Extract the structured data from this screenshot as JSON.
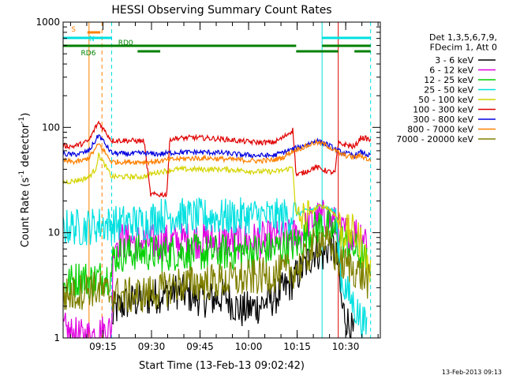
{
  "chart_data": {
    "type": "line",
    "title": "HESSI Observing Summary Count Rates",
    "xlabel": "Start Time (13-Feb-13 09:02:42)",
    "ylabel": "Count Rate (s⁻¹ detector⁻¹)",
    "ylabel_main": "Count Rate (s",
    "ylabel_sup1": "-1",
    "ylabel_mid": " detector",
    "ylabel_sup2": "-1",
    "ylabel_end": ")",
    "yscale": "log",
    "ylim": [
      1,
      1000
    ],
    "xlim_minutes": [
      0,
      98
    ],
    "xticks": [
      {
        "minute": 12.3,
        "label": "09:15"
      },
      {
        "minute": 27.3,
        "label": "09:30"
      },
      {
        "minute": 42.3,
        "label": "09:45"
      },
      {
        "minute": 57.3,
        "label": "10:00"
      },
      {
        "minute": 72.3,
        "label": "10:15"
      },
      {
        "minute": 87.3,
        "label": "10:30"
      }
    ],
    "yticks": [
      {
        "value": 1,
        "label": "1"
      },
      {
        "value": 10,
        "label": "10"
      },
      {
        "value": 100,
        "label": "100"
      },
      {
        "value": 1000,
        "label": "1000"
      }
    ],
    "legend": {
      "position": "right",
      "header": [
        "Det 1,3,5,6,7,9,",
        "FDecim 1, Att 0"
      ]
    },
    "series": [
      {
        "name": "3 - 6 keV",
        "color": "#000000",
        "points": [
          [
            15,
            1
          ],
          [
            15.5,
            1.8
          ],
          [
            20,
            2.2
          ],
          [
            25,
            2.3
          ],
          [
            30,
            2.6
          ],
          [
            35,
            2.8
          ],
          [
            40,
            2.5
          ],
          [
            45,
            2.3
          ],
          [
            50,
            2.5
          ],
          [
            55,
            1.8
          ],
          [
            60,
            2.0
          ],
          [
            65,
            2.4
          ],
          [
            70,
            3.2
          ],
          [
            75,
            5.0
          ],
          [
            78,
            7.0
          ],
          [
            80,
            6.0
          ],
          [
            83,
            8.0
          ],
          [
            85,
            5.0
          ],
          [
            86,
            2.0
          ],
          [
            90,
            1.0
          ]
        ]
      },
      {
        "name": "6 - 12 keV",
        "color": "#e000e0",
        "points": [
          [
            0,
            1.2
          ],
          [
            2,
            1.1
          ],
          [
            6,
            1.0
          ],
          [
            15,
            1.2
          ],
          [
            15.5,
            8.5
          ],
          [
            20,
            8.3
          ],
          [
            25,
            8.2
          ],
          [
            30,
            8.0
          ],
          [
            35,
            8.3
          ],
          [
            40,
            8.5
          ],
          [
            45,
            8.4
          ],
          [
            50,
            8.2
          ],
          [
            55,
            8.3
          ],
          [
            60,
            8.5
          ],
          [
            65,
            8.7
          ],
          [
            70,
            9.0
          ],
          [
            73,
            9.5
          ],
          [
            75,
            11
          ],
          [
            77,
            13
          ],
          [
            80,
            14
          ],
          [
            82,
            13
          ],
          [
            84,
            12
          ],
          [
            85,
            10
          ],
          [
            90,
            10
          ],
          [
            92,
            10
          ],
          [
            94,
            9
          ]
        ]
      },
      {
        "name": "12 - 25 keV",
        "color": "#00d000",
        "points": [
          [
            0,
            3.0
          ],
          [
            3,
            3.5
          ],
          [
            6,
            3.8
          ],
          [
            8,
            3.5
          ],
          [
            15,
            4.0
          ],
          [
            15.5,
            6.0
          ],
          [
            20,
            6.5
          ],
          [
            25,
            6.5
          ],
          [
            30,
            6.3
          ],
          [
            35,
            6.5
          ],
          [
            40,
            6.5
          ],
          [
            45,
            6.4
          ],
          [
            50,
            6.5
          ],
          [
            55,
            6.6
          ],
          [
            60,
            6.7
          ],
          [
            65,
            7.0
          ],
          [
            70,
            7.5
          ],
          [
            73,
            8.0
          ],
          [
            75,
            9.5
          ],
          [
            78,
            11
          ],
          [
            80,
            12
          ],
          [
            82,
            11
          ],
          [
            84,
            10
          ],
          [
            85,
            9
          ],
          [
            90,
            7
          ],
          [
            92,
            6
          ],
          [
            94,
            5
          ]
        ]
      },
      {
        "name": "25 - 50 keV",
        "color": "#00e0e0",
        "points": [
          [
            0,
            11
          ],
          [
            3,
            11.5
          ],
          [
            6,
            11
          ],
          [
            8,
            11.5
          ],
          [
            12,
            12
          ],
          [
            15,
            12
          ],
          [
            20,
            12.5
          ],
          [
            25,
            12.5
          ],
          [
            30,
            14.5
          ],
          [
            35,
            14.5
          ],
          [
            40,
            14.0
          ],
          [
            45,
            14.2
          ],
          [
            50,
            14.0
          ],
          [
            55,
            14.3
          ],
          [
            60,
            14.5
          ],
          [
            65,
            14.0
          ],
          [
            70,
            14.5
          ],
          [
            72,
            15
          ],
          [
            75,
            16
          ],
          [
            78,
            17
          ],
          [
            80,
            18
          ],
          [
            82,
            17
          ],
          [
            84,
            16
          ],
          [
            86,
            3.5
          ],
          [
            90,
            2
          ],
          [
            92,
            1.5
          ],
          [
            94,
            1.2
          ]
        ]
      },
      {
        "name": "50 - 100 keV",
        "color": "#d4d400",
        "points": [
          [
            0,
            30
          ],
          [
            3,
            31
          ],
          [
            6,
            32
          ],
          [
            8,
            34
          ],
          [
            10,
            40
          ],
          [
            11,
            55
          ],
          [
            15,
            34
          ],
          [
            20,
            34
          ],
          [
            25,
            34
          ],
          [
            27,
            36
          ],
          [
            30,
            38
          ],
          [
            35,
            40
          ],
          [
            40,
            40
          ],
          [
            45,
            40
          ],
          [
            50,
            40
          ],
          [
            55,
            39
          ],
          [
            60,
            38
          ],
          [
            65,
            38
          ],
          [
            68,
            39
          ],
          [
            71,
            42
          ],
          [
            72,
            13
          ],
          [
            75,
            14
          ],
          [
            78,
            17
          ],
          [
            80,
            18
          ],
          [
            82,
            17
          ],
          [
            84,
            15
          ],
          [
            85,
            13
          ],
          [
            86,
            10
          ],
          [
            88,
            10
          ],
          [
            90,
            10
          ],
          [
            92,
            8
          ],
          [
            94,
            5
          ],
          [
            95,
            4
          ]
        ]
      },
      {
        "name": "100 - 300 keV",
        "color": "#e00000",
        "points": [
          [
            0,
            67
          ],
          [
            3,
            66
          ],
          [
            6,
            70
          ],
          [
            8,
            75
          ],
          [
            10,
            100
          ],
          [
            11,
            112
          ],
          [
            15,
            75
          ],
          [
            20,
            75
          ],
          [
            25,
            74
          ],
          [
            27,
            23
          ],
          [
            32,
            23
          ],
          [
            33,
            78
          ],
          [
            40,
            80
          ],
          [
            45,
            79
          ],
          [
            50,
            77
          ],
          [
            55,
            74
          ],
          [
            60,
            72
          ],
          [
            65,
            72
          ],
          [
            68,
            80
          ],
          [
            71,
            95
          ],
          [
            72,
            35
          ],
          [
            75,
            38
          ],
          [
            78,
            42
          ],
          [
            80,
            40
          ],
          [
            82,
            38
          ],
          [
            84,
            37
          ],
          [
            85,
            70
          ],
          [
            88,
            68
          ],
          [
            90,
            65
          ],
          [
            92,
            80
          ],
          [
            94,
            78
          ],
          [
            95,
            75
          ]
        ]
      },
      {
        "name": "300 - 800 keV",
        "color": "#0000e0",
        "points": [
          [
            0,
            56
          ],
          [
            3,
            55
          ],
          [
            6,
            57
          ],
          [
            8,
            60
          ],
          [
            10,
            75
          ],
          [
            11,
            85
          ],
          [
            15,
            57
          ],
          [
            20,
            56
          ],
          [
            25,
            57
          ],
          [
            27,
            56
          ],
          [
            30,
            56
          ],
          [
            35,
            58
          ],
          [
            40,
            58
          ],
          [
            45,
            58
          ],
          [
            50,
            57
          ],
          [
            55,
            55
          ],
          [
            60,
            54
          ],
          [
            65,
            54
          ],
          [
            68,
            58
          ],
          [
            71,
            62
          ],
          [
            75,
            68
          ],
          [
            78,
            75
          ],
          [
            80,
            72
          ],
          [
            82,
            68
          ],
          [
            84,
            62
          ],
          [
            86,
            58
          ],
          [
            90,
            54
          ],
          [
            92,
            58
          ],
          [
            94,
            55
          ],
          [
            95,
            53
          ]
        ]
      },
      {
        "name": "800 - 7000 keV",
        "color": "#ff8000",
        "points": [
          [
            0,
            48
          ],
          [
            3,
            47
          ],
          [
            6,
            48
          ],
          [
            8,
            52
          ],
          [
            10,
            62
          ],
          [
            11,
            70
          ],
          [
            15,
            47
          ],
          [
            20,
            47
          ],
          [
            25,
            47
          ],
          [
            27,
            47
          ],
          [
            30,
            48
          ],
          [
            35,
            50
          ],
          [
            40,
            51
          ],
          [
            45,
            51
          ],
          [
            50,
            50
          ],
          [
            55,
            49
          ],
          [
            60,
            48
          ],
          [
            65,
            49
          ],
          [
            68,
            52
          ],
          [
            71,
            60
          ],
          [
            75,
            66
          ],
          [
            78,
            72
          ],
          [
            80,
            70
          ],
          [
            82,
            66
          ],
          [
            84,
            60
          ],
          [
            86,
            55
          ],
          [
            90,
            52
          ],
          [
            92,
            54
          ],
          [
            94,
            50
          ],
          [
            95,
            48
          ]
        ]
      },
      {
        "name": "7000 - 20000 keV",
        "color": "#808000",
        "points": [
          [
            0,
            2.5
          ],
          [
            3,
            2.6
          ],
          [
            6,
            2.8
          ],
          [
            8,
            3.0
          ],
          [
            15,
            2.6
          ],
          [
            20,
            2.5
          ],
          [
            25,
            2.6
          ],
          [
            30,
            2.8
          ],
          [
            35,
            3.2
          ],
          [
            40,
            3.3
          ],
          [
            45,
            3.4
          ],
          [
            50,
            3.5
          ],
          [
            55,
            3.6
          ],
          [
            60,
            3.8
          ],
          [
            65,
            4.0
          ],
          [
            70,
            4.3
          ],
          [
            72,
            4.5
          ],
          [
            75,
            5.5
          ],
          [
            78,
            8
          ],
          [
            80,
            9
          ],
          [
            82,
            7.5
          ],
          [
            84,
            6
          ],
          [
            86,
            5
          ],
          [
            88,
            5
          ],
          [
            90,
            4.5
          ],
          [
            92,
            4
          ],
          [
            94,
            3.5
          ],
          [
            95,
            3.2
          ]
        ]
      }
    ],
    "flags": [
      {
        "label": "S",
        "color": "#ff8000",
        "segments": [
          [
            7.5,
            11.5
          ]
        ],
        "level": 1
      },
      {
        "label": "N",
        "color": "#00e0e0",
        "segments": [
          [
            0,
            15
          ],
          [
            80,
            95
          ]
        ],
        "level": 2
      },
      {
        "label": "RD0",
        "color": "#008000",
        "segments": [
          [
            0,
            72
          ],
          [
            80,
            95
          ]
        ],
        "level": 3
      },
      {
        "label": "RD6",
        "color": "#008000",
        "segments": [
          [
            23,
            30
          ],
          [
            72,
            85
          ],
          [
            90,
            95
          ]
        ],
        "level": 4
      }
    ],
    "vertical_lines": [
      {
        "minute": 0,
        "color": "#00e0e0",
        "style": "solid"
      },
      {
        "minute": 15,
        "color": "#00e0e0",
        "style": "dashed"
      },
      {
        "minute": 80,
        "color": "#00e0e0",
        "style": "solid"
      },
      {
        "minute": 95,
        "color": "#00e0e0",
        "style": "dashed"
      },
      {
        "minute": 8,
        "color": "#ff8000",
        "style": "solid"
      },
      {
        "minute": 12,
        "color": "#ff8000",
        "style": "dashed"
      },
      {
        "minute": 85,
        "color": "#e00000",
        "style": "solid"
      }
    ],
    "footer_date": "13-Feb-2013 09:13"
  }
}
